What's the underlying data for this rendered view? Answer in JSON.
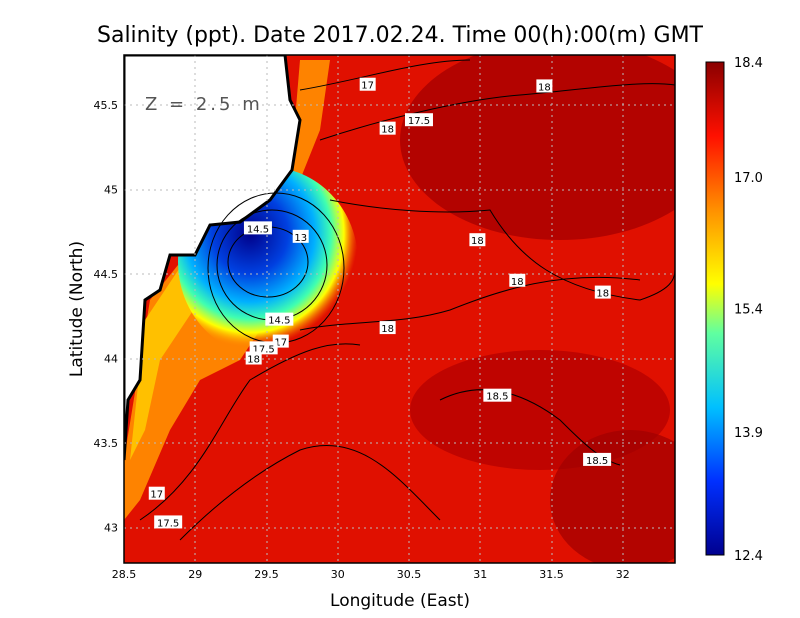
{
  "chart_data": {
    "type": "heatmap",
    "title": "Salinity (ppt). Date 2017.02.24. Time 00(h):00(m) GMT",
    "xlabel": "Longitude (East)",
    "ylabel": "Latitude (North)",
    "depth_label": "Z = 2.5 m",
    "xlim": [
      28.5,
      32.4
    ],
    "ylim": [
      42.8,
      45.8
    ],
    "xticks": [
      "28.5",
      "29",
      "29.5",
      "30",
      "30.5",
      "31",
      "31.5",
      "32"
    ],
    "xtick_values": [
      28.5,
      29,
      29.5,
      30,
      30.5,
      31,
      31.5,
      32
    ],
    "yticks": [
      "43",
      "43.5",
      "44",
      "44.5",
      "45",
      "45.5"
    ],
    "ytick_values": [
      43,
      43.5,
      44,
      44.5,
      45,
      45.5
    ],
    "grid": true,
    "colorbar": {
      "min": 12.4,
      "max": 18.4,
      "ticks": [
        "18.4",
        "17.0",
        "15.4",
        "13.9",
        "12.4"
      ],
      "tick_values": [
        18.4,
        17.0,
        15.4,
        13.9,
        12.4
      ]
    },
    "contour_labels": [
      {
        "text": "17",
        "lon": 30.21,
        "lat": 45.62
      },
      {
        "text": "18",
        "lon": 31.45,
        "lat": 45.61
      },
      {
        "text": "17.5",
        "lon": 30.57,
        "lat": 45.41
      },
      {
        "text": "18",
        "lon": 30.35,
        "lat": 45.36
      },
      {
        "text": "14.5",
        "lon": 29.44,
        "lat": 44.77
      },
      {
        "text": "13",
        "lon": 29.74,
        "lat": 44.72
      },
      {
        "text": "18",
        "lon": 30.98,
        "lat": 44.7
      },
      {
        "text": "18",
        "lon": 31.26,
        "lat": 44.46
      },
      {
        "text": "18",
        "lon": 31.86,
        "lat": 44.39
      },
      {
        "text": "14.5",
        "lon": 29.59,
        "lat": 44.23
      },
      {
        "text": "18",
        "lon": 30.35,
        "lat": 44.18
      },
      {
        "text": "17",
        "lon": 29.6,
        "lat": 44.1
      },
      {
        "text": "17.5",
        "lon": 29.48,
        "lat": 44.06
      },
      {
        "text": "18",
        "lon": 29.41,
        "lat": 44.0
      },
      {
        "text": "18.5",
        "lon": 31.12,
        "lat": 43.78
      },
      {
        "text": "18.5",
        "lon": 31.82,
        "lat": 43.4
      },
      {
        "text": "17",
        "lon": 28.73,
        "lat": 43.2
      },
      {
        "text": "17.5",
        "lon": 28.81,
        "lat": 43.03
      }
    ]
  }
}
